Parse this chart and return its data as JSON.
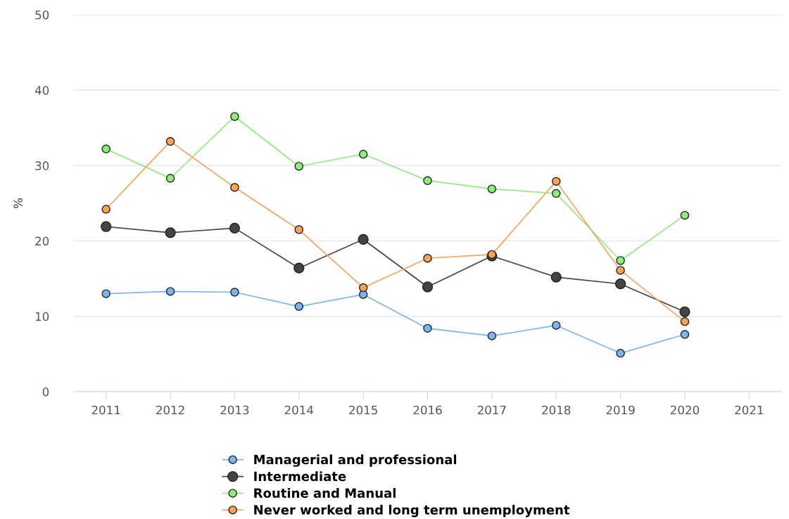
{
  "chart_data": {
    "type": "line",
    "ylabel": "%",
    "categories": [
      "2011",
      "2012",
      "2013",
      "2014",
      "2015",
      "2016",
      "2017",
      "2018",
      "2019",
      "2020",
      "2021"
    ],
    "ylim": [
      0,
      50
    ],
    "yticks": [
      0,
      10,
      20,
      30,
      40,
      50
    ],
    "grid": "y",
    "legend": "bottom",
    "marker": "circle",
    "line_style": "solid",
    "series": [
      {
        "name": "Managerial and professional",
        "color": "#7cb5ec",
        "values": [
          13.0,
          13.3,
          13.2,
          11.3,
          12.9,
          8.4,
          7.4,
          8.8,
          5.1,
          7.6,
          null
        ]
      },
      {
        "name": "Intermediate",
        "color": "#434348",
        "values": [
          21.9,
          21.1,
          21.7,
          16.4,
          20.2,
          13.9,
          18.0,
          15.2,
          14.3,
          10.6,
          null
        ]
      },
      {
        "name": "Routine and Manual",
        "color": "#90ed7d",
        "values": [
          32.2,
          28.3,
          36.5,
          29.9,
          31.5,
          28.0,
          26.9,
          26.3,
          17.4,
          23.4,
          null
        ]
      },
      {
        "name": "Never worked and long term unemployment",
        "color": "#f7a35c",
        "values": [
          24.2,
          33.2,
          27.1,
          21.5,
          13.8,
          17.7,
          18.2,
          27.9,
          16.1,
          9.3,
          null
        ]
      }
    ]
  }
}
